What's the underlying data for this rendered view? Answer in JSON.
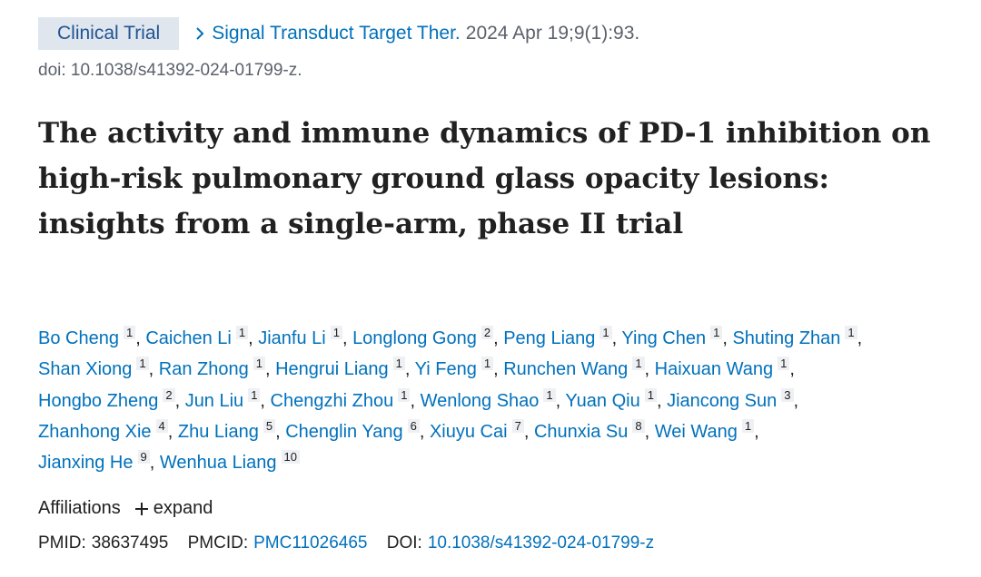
{
  "badge": "Clinical Trial",
  "citation": {
    "journal": "Signal Transduct Target Ther.",
    "details": "2024 Apr 19;9(1):93."
  },
  "doi_line": "doi: 10.1038/s41392-024-01799-z.",
  "title": "The activity and immune dynamics of PD-1 inhibition on high-risk pulmonary ground glass opacity lesions: insights from a single-arm, phase II trial",
  "authors": [
    {
      "name": "Bo Cheng",
      "affiliation": 1
    },
    {
      "name": "Caichen Li",
      "affiliation": 1
    },
    {
      "name": "Jianfu Li",
      "affiliation": 1
    },
    {
      "name": "Longlong Gong",
      "affiliation": 2
    },
    {
      "name": "Peng Liang",
      "affiliation": 1
    },
    {
      "name": "Ying Chen",
      "affiliation": 1
    },
    {
      "name": "Shuting Zhan",
      "affiliation": 1
    },
    {
      "name": "Shan Xiong",
      "affiliation": 1
    },
    {
      "name": "Ran Zhong",
      "affiliation": 1
    },
    {
      "name": "Hengrui Liang",
      "affiliation": 1
    },
    {
      "name": "Yi Feng",
      "affiliation": 1
    },
    {
      "name": "Runchen Wang",
      "affiliation": 1
    },
    {
      "name": "Haixuan Wang",
      "affiliation": 1
    },
    {
      "name": "Hongbo Zheng",
      "affiliation": 2
    },
    {
      "name": "Jun Liu",
      "affiliation": 1
    },
    {
      "name": "Chengzhi Zhou",
      "affiliation": 1
    },
    {
      "name": "Wenlong Shao",
      "affiliation": 1
    },
    {
      "name": "Yuan Qiu",
      "affiliation": 1
    },
    {
      "name": "Jiancong Sun",
      "affiliation": 3
    },
    {
      "name": "Zhanhong Xie",
      "affiliation": 4
    },
    {
      "name": "Zhu Liang",
      "affiliation": 5
    },
    {
      "name": "Chenglin Yang",
      "affiliation": 6
    },
    {
      "name": "Xiuyu Cai",
      "affiliation": 7
    },
    {
      "name": "Chunxia Su",
      "affiliation": 8
    },
    {
      "name": "Wei Wang",
      "affiliation": 1
    },
    {
      "name": "Jianxing He",
      "affiliation": 9
    },
    {
      "name": "Wenhua Liang",
      "affiliation": 10
    }
  ],
  "affiliations": {
    "label": "Affiliations",
    "action": "expand"
  },
  "ids": {
    "pmid_label": "PMID:",
    "pmid": "38637495",
    "pmcid_label": "PMCID:",
    "pmcid": "PMC11026465",
    "doi_label": "DOI:",
    "doi": "10.1038/s41392-024-01799-z"
  }
}
